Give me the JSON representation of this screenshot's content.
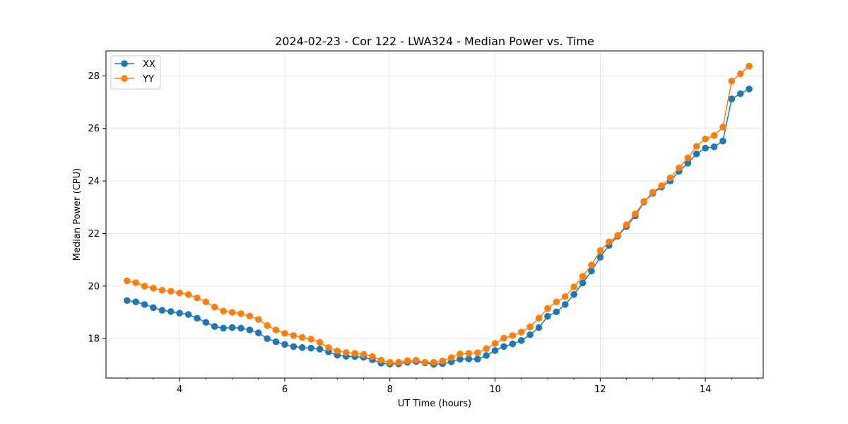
{
  "chart_data": {
    "type": "line",
    "title": "2024-02-23 - Cor 122 - LWA324 - Median Power vs. Time",
    "xlabel": "UT Time (hours)",
    "ylabel": "Median Power (CPU)",
    "xlim": [
      2.6,
      15.1
    ],
    "ylim": [
      16.5,
      28.95
    ],
    "xticks": [
      4,
      6,
      8,
      10,
      12,
      14
    ],
    "yticks": [
      18,
      20,
      22,
      24,
      26,
      28
    ],
    "grid": true,
    "legend_position": "top-left",
    "x": [
      3.0,
      3.167,
      3.333,
      3.5,
      3.667,
      3.833,
      4.0,
      4.167,
      4.333,
      4.5,
      4.667,
      4.833,
      5.0,
      5.167,
      5.333,
      5.5,
      5.667,
      5.833,
      6.0,
      6.167,
      6.333,
      6.5,
      6.667,
      6.833,
      7.0,
      7.167,
      7.333,
      7.5,
      7.667,
      7.833,
      8.0,
      8.167,
      8.333,
      8.5,
      8.667,
      8.833,
      9.0,
      9.167,
      9.333,
      9.5,
      9.667,
      9.833,
      10.0,
      10.167,
      10.333,
      10.5,
      10.667,
      10.833,
      11.0,
      11.167,
      11.333,
      11.5,
      11.667,
      11.833,
      12.0,
      12.167,
      12.333,
      12.5,
      12.667,
      12.833,
      13.0,
      13.167,
      13.333,
      13.5,
      13.667,
      13.833,
      14.0,
      14.167,
      14.333,
      14.5,
      14.667,
      14.833
    ],
    "series": [
      {
        "name": "XX",
        "color": "#1f77b4",
        "values": [
          19.45,
          19.4,
          19.3,
          19.18,
          19.08,
          19.03,
          18.97,
          18.92,
          18.78,
          18.62,
          18.46,
          18.4,
          18.42,
          18.4,
          18.33,
          18.22,
          18.0,
          17.88,
          17.78,
          17.7,
          17.66,
          17.64,
          17.6,
          17.5,
          17.37,
          17.33,
          17.32,
          17.29,
          17.2,
          17.07,
          17.03,
          17.04,
          17.1,
          17.13,
          17.08,
          17.02,
          17.05,
          17.12,
          17.22,
          17.23,
          17.22,
          17.36,
          17.55,
          17.7,
          17.8,
          17.93,
          18.15,
          18.42,
          18.85,
          19.02,
          19.3,
          19.68,
          20.12,
          20.57,
          21.1,
          21.55,
          21.9,
          22.27,
          22.67,
          23.2,
          23.53,
          23.77,
          24.0,
          24.37,
          24.68,
          25.03,
          25.25,
          25.3,
          25.52,
          27.12,
          27.32,
          27.5
        ]
      },
      {
        "name": "YY",
        "color": "#ff7f0e",
        "values": [
          20.2,
          20.13,
          20.0,
          19.92,
          19.84,
          19.8,
          19.74,
          19.68,
          19.55,
          19.4,
          19.2,
          19.05,
          19.0,
          18.95,
          18.86,
          18.73,
          18.5,
          18.33,
          18.2,
          18.12,
          18.05,
          17.98,
          17.86,
          17.66,
          17.53,
          17.47,
          17.44,
          17.4,
          17.32,
          17.18,
          17.1,
          17.1,
          17.16,
          17.18,
          17.1,
          17.1,
          17.15,
          17.28,
          17.42,
          17.44,
          17.46,
          17.62,
          17.82,
          18.02,
          18.12,
          18.25,
          18.45,
          18.78,
          19.15,
          19.4,
          19.6,
          19.97,
          20.37,
          20.8,
          21.35,
          21.68,
          21.93,
          22.33,
          22.75,
          23.22,
          23.57,
          23.82,
          24.12,
          24.5,
          24.88,
          25.32,
          25.6,
          25.73,
          26.05,
          27.8,
          28.08,
          28.37
        ]
      }
    ]
  }
}
